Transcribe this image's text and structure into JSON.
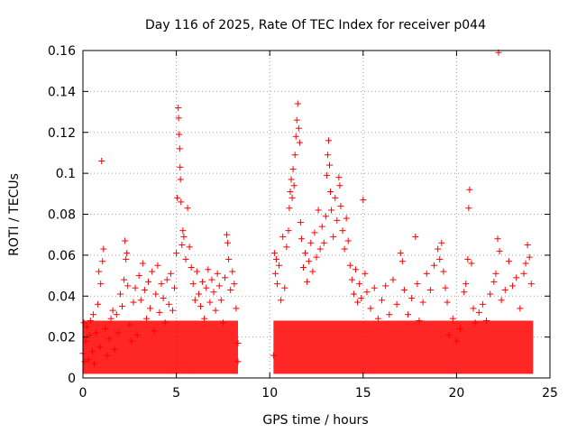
{
  "chart_data": {
    "type": "scatter",
    "title": "Day 116 of 2025, Rate Of TEC Index for receiver p044",
    "xlabel": "GPS time / hours",
    "ylabel": "ROTI / TECUs",
    "xlim": [
      0,
      25
    ],
    "ylim": [
      0,
      0.16
    ],
    "xticks": [
      0,
      5,
      10,
      15,
      20,
      25
    ],
    "yticks": [
      0,
      0.02,
      0.04,
      0.06,
      0.08,
      0.1,
      0.12,
      0.14,
      0.16
    ],
    "xtick_labels": [
      "0",
      "5",
      "10",
      "15",
      "20",
      "25"
    ],
    "ytick_labels": [
      "0",
      "0.02",
      "0.04",
      "0.06",
      "0.08",
      "0.1",
      "0.12",
      "0.14",
      "0.16"
    ],
    "grid": true,
    "marker": "+",
    "color": "#ff0000",
    "series": [
      {
        "points": [
          [
            0.0,
            0.012
          ],
          [
            0.05,
            0.027
          ],
          [
            0.1,
            0.008
          ],
          [
            0.15,
            0.018
          ],
          [
            0.2,
            0.025
          ],
          [
            0.3,
            0.009
          ],
          [
            0.35,
            0.021
          ],
          [
            0.4,
            0.028
          ],
          [
            0.5,
            0.013
          ],
          [
            0.55,
            0.031
          ],
          [
            0.6,
            0.007
          ],
          [
            0.7,
            0.022
          ],
          [
            0.8,
            0.036
          ],
          [
            0.85,
            0.052
          ],
          [
            0.9,
            0.015
          ],
          [
            0.95,
            0.046
          ],
          [
            1.0,
            0.106
          ],
          [
            1.05,
            0.057
          ],
          [
            1.1,
            0.063
          ],
          [
            1.2,
            0.024
          ],
          [
            1.3,
            0.011
          ],
          [
            1.4,
            0.019
          ],
          [
            1.5,
            0.029
          ],
          [
            1.6,
            0.033
          ],
          [
            1.7,
            0.014
          ],
          [
            1.8,
            0.031
          ],
          [
            1.9,
            0.022
          ],
          [
            2.0,
            0.041
          ],
          [
            2.1,
            0.035
          ],
          [
            2.2,
            0.048
          ],
          [
            2.25,
            0.067
          ],
          [
            2.3,
            0.058
          ],
          [
            2.35,
            0.061
          ],
          [
            2.4,
            0.045
          ],
          [
            2.5,
            0.026
          ],
          [
            2.6,
            0.018
          ],
          [
            2.7,
            0.037
          ],
          [
            2.8,
            0.044
          ],
          [
            2.9,
            0.021
          ],
          [
            3.0,
            0.05
          ],
          [
            3.1,
            0.038
          ],
          [
            3.2,
            0.056
          ],
          [
            3.3,
            0.043
          ],
          [
            3.4,
            0.029
          ],
          [
            3.5,
            0.047
          ],
          [
            3.6,
            0.034
          ],
          [
            3.7,
            0.052
          ],
          [
            3.8,
            0.023
          ],
          [
            3.9,
            0.041
          ],
          [
            4.0,
            0.055
          ],
          [
            4.1,
            0.032
          ],
          [
            4.2,
            0.046
          ],
          [
            4.3,
            0.039
          ],
          [
            4.4,
            0.027
          ],
          [
            4.5,
            0.048
          ],
          [
            4.6,
            0.036
          ],
          [
            4.7,
            0.051
          ],
          [
            4.8,
            0.033
          ],
          [
            4.9,
            0.044
          ],
          [
            5.0,
            0.061
          ],
          [
            5.05,
            0.088
          ],
          [
            5.1,
            0.132
          ],
          [
            5.12,
            0.127
          ],
          [
            5.15,
            0.119
          ],
          [
            5.18,
            0.112
          ],
          [
            5.2,
            0.103
          ],
          [
            5.22,
            0.097
          ],
          [
            5.25,
            0.086
          ],
          [
            5.3,
            0.065
          ],
          [
            5.35,
            0.072
          ],
          [
            5.4,
            0.069
          ],
          [
            5.5,
            0.058
          ],
          [
            5.6,
            0.083
          ],
          [
            5.7,
            0.064
          ],
          [
            5.8,
            0.054
          ],
          [
            5.9,
            0.046
          ],
          [
            6.0,
            0.038
          ],
          [
            6.1,
            0.052
          ],
          [
            6.2,
            0.041
          ],
          [
            6.3,
            0.035
          ],
          [
            6.4,
            0.047
          ],
          [
            6.5,
            0.029
          ],
          [
            6.6,
            0.044
          ],
          [
            6.7,
            0.053
          ],
          [
            6.8,
            0.037
          ],
          [
            6.9,
            0.048
          ],
          [
            7.0,
            0.042
          ],
          [
            7.1,
            0.033
          ],
          [
            7.2,
            0.051
          ],
          [
            7.3,
            0.045
          ],
          [
            7.4,
            0.038
          ],
          [
            7.5,
            0.027
          ],
          [
            7.6,
            0.049
          ],
          [
            7.7,
            0.07
          ],
          [
            7.75,
            0.066
          ],
          [
            7.8,
            0.058
          ],
          [
            7.9,
            0.043
          ],
          [
            8.0,
            0.052
          ],
          [
            8.1,
            0.046
          ],
          [
            8.2,
            0.034
          ],
          [
            8.3,
            0.008
          ],
          [
            8.3,
            0.017
          ],
          [
            10.2,
            0.011
          ],
          [
            10.25,
            0.061
          ],
          [
            10.3,
            0.051
          ],
          [
            10.35,
            0.058
          ],
          [
            10.4,
            0.046
          ],
          [
            10.5,
            0.055
          ],
          [
            10.6,
            0.038
          ],
          [
            10.7,
            0.069
          ],
          [
            10.8,
            0.044
          ],
          [
            10.9,
            0.064
          ],
          [
            11.0,
            0.072
          ],
          [
            11.05,
            0.083
          ],
          [
            11.1,
            0.091
          ],
          [
            11.15,
            0.097
          ],
          [
            11.2,
            0.088
          ],
          [
            11.25,
            0.102
          ],
          [
            11.3,
            0.094
          ],
          [
            11.35,
            0.109
          ],
          [
            11.4,
            0.118
          ],
          [
            11.45,
            0.126
          ],
          [
            11.5,
            0.134
          ],
          [
            11.55,
            0.122
          ],
          [
            11.6,
            0.115
          ],
          [
            11.65,
            0.076
          ],
          [
            11.7,
            0.068
          ],
          [
            11.8,
            0.054
          ],
          [
            11.9,
            0.061
          ],
          [
            12.0,
            0.047
          ],
          [
            12.1,
            0.057
          ],
          [
            12.2,
            0.066
          ],
          [
            12.3,
            0.052
          ],
          [
            12.4,
            0.071
          ],
          [
            12.5,
            0.059
          ],
          [
            12.6,
            0.082
          ],
          [
            12.7,
            0.063
          ],
          [
            12.8,
            0.074
          ],
          [
            12.9,
            0.066
          ],
          [
            13.0,
            0.079
          ],
          [
            13.05,
            0.099
          ],
          [
            13.1,
            0.109
          ],
          [
            13.15,
            0.116
          ],
          [
            13.2,
            0.104
          ],
          [
            13.25,
            0.091
          ],
          [
            13.3,
            0.082
          ],
          [
            13.4,
            0.069
          ],
          [
            13.5,
            0.088
          ],
          [
            13.6,
            0.077
          ],
          [
            13.7,
            0.098
          ],
          [
            13.75,
            0.094
          ],
          [
            13.8,
            0.084
          ],
          [
            13.9,
            0.072
          ],
          [
            14.0,
            0.063
          ],
          [
            14.1,
            0.078
          ],
          [
            14.2,
            0.067
          ],
          [
            14.3,
            0.055
          ],
          [
            14.4,
            0.048
          ],
          [
            14.5,
            0.041
          ],
          [
            14.6,
            0.053
          ],
          [
            14.7,
            0.037
          ],
          [
            14.8,
            0.046
          ],
          [
            14.9,
            0.039
          ],
          [
            15.0,
            0.087
          ],
          [
            15.1,
            0.051
          ],
          [
            15.2,
            0.042
          ],
          [
            15.4,
            0.034
          ],
          [
            15.6,
            0.044
          ],
          [
            15.8,
            0.029
          ],
          [
            16.0,
            0.038
          ],
          [
            16.2,
            0.045
          ],
          [
            16.4,
            0.031
          ],
          [
            16.6,
            0.048
          ],
          [
            16.8,
            0.036
          ],
          [
            17.0,
            0.061
          ],
          [
            17.1,
            0.057
          ],
          [
            17.2,
            0.043
          ],
          [
            17.4,
            0.031
          ],
          [
            17.6,
            0.039
          ],
          [
            17.8,
            0.069
          ],
          [
            17.9,
            0.046
          ],
          [
            18.0,
            0.028
          ],
          [
            18.2,
            0.037
          ],
          [
            18.4,
            0.051
          ],
          [
            18.6,
            0.043
          ],
          [
            18.8,
            0.055
          ],
          [
            19.0,
            0.063
          ],
          [
            19.1,
            0.058
          ],
          [
            19.2,
            0.066
          ],
          [
            19.3,
            0.052
          ],
          [
            19.4,
            0.044
          ],
          [
            19.5,
            0.037
          ],
          [
            19.6,
            0.021
          ],
          [
            19.8,
            0.029
          ],
          [
            20.0,
            0.018
          ],
          [
            20.2,
            0.024
          ],
          [
            20.4,
            0.042
          ],
          [
            20.5,
            0.046
          ],
          [
            20.6,
            0.058
          ],
          [
            20.65,
            0.083
          ],
          [
            20.7,
            0.092
          ],
          [
            20.8,
            0.056
          ],
          [
            20.9,
            0.034
          ],
          [
            21.0,
            0.027
          ],
          [
            21.2,
            0.032
          ],
          [
            21.4,
            0.036
          ],
          [
            21.6,
            0.028
          ],
          [
            21.8,
            0.041
          ],
          [
            22.0,
            0.047
          ],
          [
            22.1,
            0.051
          ],
          [
            22.2,
            0.068
          ],
          [
            22.3,
            0.062
          ],
          [
            22.25,
            0.159
          ],
          [
            22.4,
            0.038
          ],
          [
            22.6,
            0.043
          ],
          [
            22.8,
            0.057
          ],
          [
            23.0,
            0.045
          ],
          [
            23.2,
            0.049
          ],
          [
            23.4,
            0.034
          ],
          [
            23.6,
            0.051
          ],
          [
            23.7,
            0.056
          ],
          [
            23.8,
            0.065
          ],
          [
            23.9,
            0.059
          ],
          [
            24.0,
            0.046
          ]
        ]
      }
    ]
  }
}
